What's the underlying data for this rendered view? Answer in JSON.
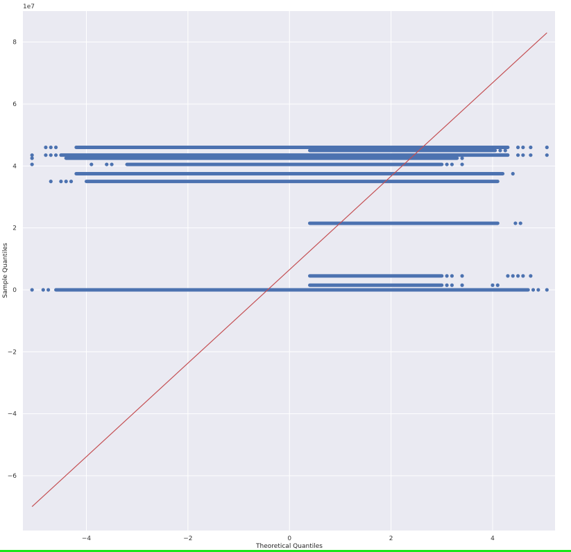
{
  "chart_data": {
    "type": "scatter",
    "title": "",
    "xlabel": "Theoretical Quantiles",
    "ylabel": "Sample Quantiles",
    "y_offset_label": "1e7",
    "xlim": [
      -5.25,
      5.23
    ],
    "ylim": [
      -7.77,
      9.0
    ],
    "xticks": [
      -4,
      -2,
      0,
      2,
      4
    ],
    "yticks": [
      -6,
      -4,
      -2,
      0,
      2,
      4,
      6,
      8
    ],
    "grid": true,
    "colors": {
      "background": "#eaeaf2",
      "points": "#4c72b0",
      "line": "#c44e52",
      "grid": "#ffffff"
    },
    "reference_line": {
      "x": [
        -5.07,
        5.07
      ],
      "y": [
        -7.0,
        8.3
      ]
    },
    "bands": [
      {
        "y": 4.6,
        "x_from": -4.2,
        "x_to": 4.3,
        "outliers": [
          -4.8,
          -4.7,
          -4.6,
          4.5,
          4.6,
          4.75,
          5.07
        ]
      },
      {
        "y": 4.5,
        "x_from": 0.4,
        "x_to": 4.05,
        "outliers": [
          4.15,
          4.25
        ]
      },
      {
        "y": 4.35,
        "x_from": -4.5,
        "x_to": 4.3,
        "outliers": [
          -5.07,
          -4.8,
          -4.7,
          -4.6,
          4.5,
          4.6,
          4.75,
          5.07
        ]
      },
      {
        "y": 4.25,
        "x_from": -4.4,
        "x_to": 3.3,
        "outliers": [
          -5.07,
          3.4
        ]
      },
      {
        "y": 4.05,
        "x_from": -3.2,
        "x_to": 3.0,
        "outliers": [
          -5.07,
          -3.9,
          -3.6,
          -3.5,
          3.1,
          3.2,
          3.4
        ]
      },
      {
        "y": 3.75,
        "x_from": -4.2,
        "x_to": 4.2,
        "outliers": [
          4.4
        ]
      },
      {
        "y": 3.5,
        "x_from": -4.0,
        "x_to": 4.1,
        "outliers": [
          -4.7,
          -4.5,
          -4.4,
          -4.3
        ]
      },
      {
        "y": 2.15,
        "x_from": 0.4,
        "x_to": 4.1,
        "outliers": [
          4.45,
          4.55
        ]
      },
      {
        "y": 0.45,
        "x_from": 0.4,
        "x_to": 3.0,
        "outliers": [
          3.1,
          3.2,
          3.4,
          4.3,
          4.4,
          4.5,
          4.6,
          4.75
        ]
      },
      {
        "y": 0.15,
        "x_from": 0.4,
        "x_to": 3.0,
        "outliers": [
          3.1,
          3.2,
          3.4,
          4.0,
          4.1
        ]
      },
      {
        "y": 0.0,
        "x_from": -4.6,
        "x_to": 4.7,
        "outliers": [
          -5.07,
          -4.85,
          -4.75,
          4.8,
          4.9,
          5.07
        ]
      }
    ]
  }
}
